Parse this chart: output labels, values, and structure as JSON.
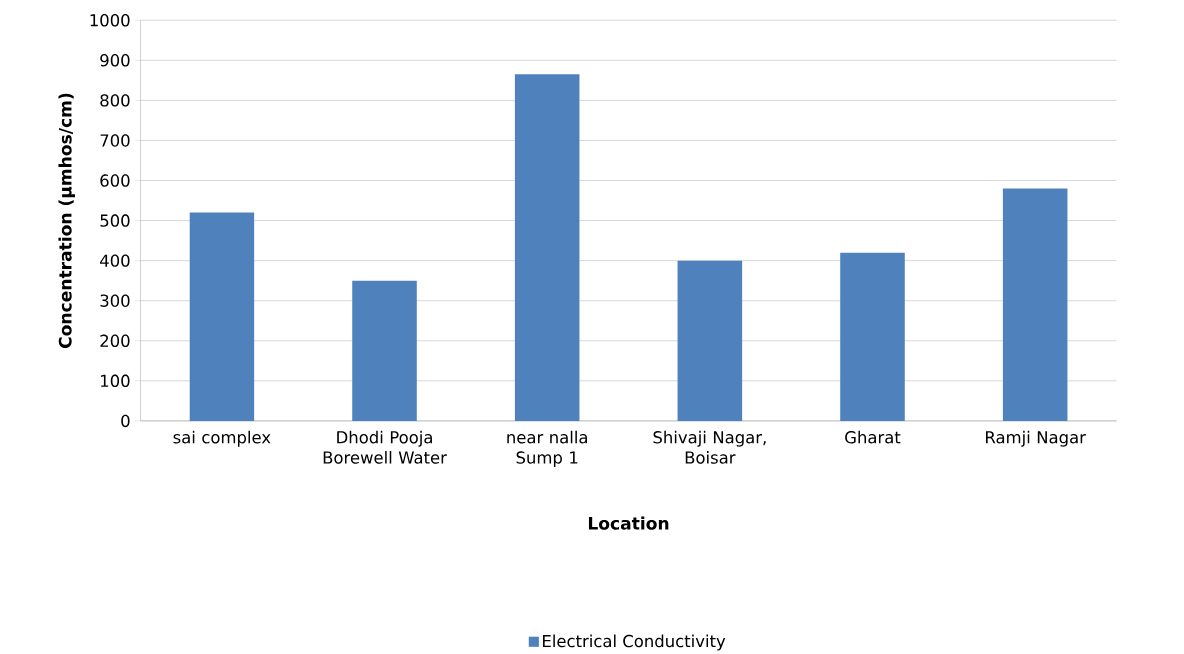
{
  "chart_data": {
    "type": "bar",
    "xlabel": "Location",
    "ylabel": "Concentration (µmhos/cm)",
    "categories": [
      "sai complex",
      "Dhodi Pooja Borewell Water",
      "near nalla Sump 1",
      "Shivaji Nagar, Boisar",
      "Gharat",
      "Ramji Nagar"
    ],
    "series": [
      {
        "name": "Electrical Conductivity",
        "color": "#4f81bd",
        "values": [
          520,
          350,
          865,
          400,
          420,
          580
        ]
      }
    ],
    "ylim": [
      0,
      1000
    ],
    "yticks": [
      0,
      100,
      200,
      300,
      400,
      500,
      600,
      700,
      800,
      900,
      1000
    ],
    "grid": "y",
    "legend": "bottom"
  }
}
